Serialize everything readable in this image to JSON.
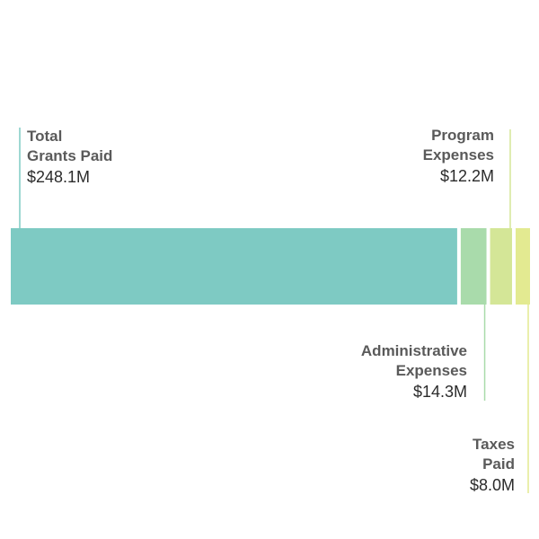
{
  "chart_data": {
    "type": "bar",
    "orientation": "horizontal",
    "stacked": true,
    "title": "",
    "xlabel": "",
    "ylabel": "",
    "grid": false,
    "legend": "none",
    "unit": "$M",
    "segments": [
      {
        "id": "grants",
        "name_lines": [
          "Total",
          "Grants Paid"
        ],
        "value": 248.1,
        "value_label": "$248.1M",
        "color": "#7ecac3",
        "leader_color": "#7ecac3"
      },
      {
        "id": "admin",
        "name_lines": [
          "Administrative",
          "Expenses"
        ],
        "value": 14.3,
        "value_label": "$14.3M",
        "color": "#a9dbab",
        "leader_color": "#a9dbab"
      },
      {
        "id": "program",
        "name_lines": [
          "Program",
          "Expenses"
        ],
        "value": 12.2,
        "value_label": "$12.2M",
        "color": "#d4e697",
        "leader_color": "#d4e697"
      },
      {
        "id": "taxes",
        "name_lines": [
          "Taxes",
          "Paid"
        ],
        "value": 8.0,
        "value_label": "$8.0M",
        "color": "#e3ea91",
        "leader_color": "#e3ea91"
      }
    ]
  }
}
